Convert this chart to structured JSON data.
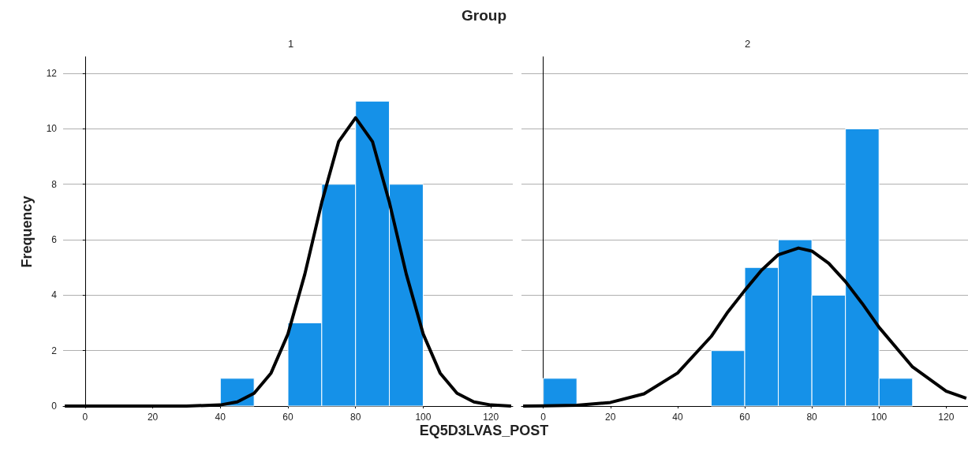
{
  "chart_data": [
    {
      "type": "histogram",
      "title": "1",
      "annotations": [
        "Group"
      ],
      "xlabel": "EQ5D3LVAS_POST",
      "ylabel": "Frequency",
      "bins": [
        40,
        50,
        60,
        70,
        80,
        90,
        100
      ],
      "values": [
        1,
        0,
        3,
        8,
        11,
        8
      ],
      "color": "#1591e8",
      "xlim": [
        -6.5,
        126.5
      ],
      "xticks": [
        0,
        20,
        40,
        60,
        80,
        100,
        120
      ],
      "ylim": [
        0,
        12.6
      ],
      "yticks": [
        0,
        2,
        4,
        6,
        8,
        10,
        12
      ],
      "grid": "y",
      "series": [
        {
          "type": "line",
          "color": "#000000",
          "x": [
            -6,
            0,
            10,
            20,
            30,
            40,
            45,
            50,
            55,
            60,
            65,
            70,
            75,
            80,
            85,
            90,
            95,
            100,
            105,
            110,
            115,
            120,
            126
          ],
          "values": [
            0,
            0,
            0,
            0,
            0,
            0.04,
            0.15,
            0.46,
            1.19,
            2.6,
            4.76,
            7.35,
            9.54,
            10.4,
            9.54,
            7.35,
            4.76,
            2.6,
            1.19,
            0.46,
            0.15,
            0.04,
            0
          ]
        }
      ]
    },
    {
      "type": "histogram",
      "title": "2",
      "bins": [
        0,
        10,
        20,
        30,
        40,
        50,
        60,
        70,
        80,
        90,
        100,
        110
      ],
      "values": [
        1,
        0,
        0,
        0,
        0,
        2,
        5,
        6,
        4,
        10,
        1
      ],
      "color": "#1591e8",
      "xlim": [
        -6.5,
        126.5
      ],
      "xticks": [
        0,
        20,
        40,
        60,
        80,
        100,
        120
      ],
      "ylim": [
        0,
        12.6
      ],
      "yticks": [
        0,
        2,
        4,
        6,
        8,
        10,
        12
      ],
      "grid": "y",
      "tick_labels": "x",
      "series": [
        {
          "type": "line",
          "color": "#000000",
          "x": [
            -6,
            0,
            10,
            20,
            30,
            40,
            50,
            55,
            60,
            65,
            70,
            76,
            80,
            85,
            90,
            95,
            100,
            110,
            120,
            126
          ],
          "values": [
            0,
            0.01,
            0.03,
            0.13,
            0.44,
            1.19,
            2.51,
            3.4,
            4.17,
            4.9,
            5.46,
            5.7,
            5.59,
            5.15,
            4.49,
            3.7,
            2.84,
            1.41,
            0.54,
            0.28
          ]
        }
      ]
    }
  ]
}
